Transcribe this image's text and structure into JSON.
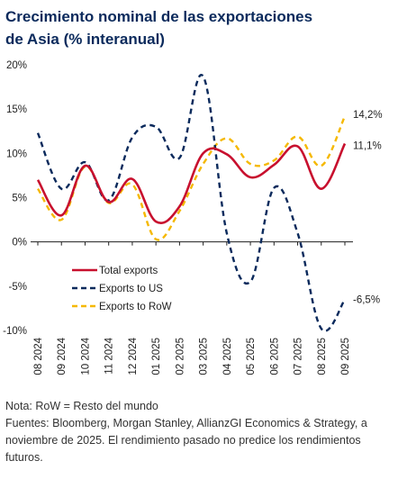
{
  "title_line1": "Crecimiento nominal de las exportaciones",
  "title_line2": "de Asia (% interanual)",
  "footer": {
    "note": "Nota: RoW = Resto del mundo",
    "sources": "Fuentes: Bloomberg, Morgan Stanley, AllianzGI Economics & Strategy, a noviembre de 2025. El rendimiento pasado no predice los rendimientos futuros."
  },
  "colors": {
    "title": "#0b2a5c",
    "total": "#c8102e",
    "us": "#0b2a5c",
    "row": "#f5b800"
  },
  "chart_data": {
    "type": "line",
    "categories": [
      "08 2024",
      "09 2024",
      "10 2024",
      "11 2024",
      "12 2024",
      "01 2025",
      "02 2025",
      "03 2025",
      "04 2025",
      "05 2025",
      "06 2025",
      "07 2025",
      "08 2025",
      "09 2025"
    ],
    "ylim": [
      -10,
      20
    ],
    "yticks": [
      20,
      15,
      10,
      5,
      0,
      -5,
      -10
    ],
    "ytick_labels": [
      "20%",
      "15%",
      "10%",
      "5%",
      "0%",
      "-5%",
      "-10%"
    ],
    "grid": false,
    "legend_position": "bottom-left",
    "series": [
      {
        "name": "Total exports",
        "key": "total",
        "style": "solid",
        "values": [
          7.0,
          3.0,
          8.6,
          4.5,
          7.1,
          2.3,
          4.0,
          10.0,
          9.9,
          7.3,
          8.7,
          10.8,
          6.0,
          11.1
        ],
        "end_label": "11,1%"
      },
      {
        "name": "Exports to US",
        "key": "us",
        "style": "dash",
        "values": [
          12.3,
          6.0,
          9.0,
          4.7,
          11.8,
          13.0,
          9.5,
          18.7,
          1.0,
          -4.5,
          6.1,
          1.0,
          -9.8,
          -6.5
        ],
        "end_label": "-6,5%"
      },
      {
        "name": "Exports to RoW",
        "key": "row",
        "style": "dash",
        "values": [
          6.0,
          2.5,
          8.5,
          4.4,
          6.5,
          0.3,
          3.5,
          8.8,
          11.7,
          8.8,
          9.2,
          11.9,
          8.6,
          14.2
        ],
        "end_label": "14,2%"
      }
    ]
  }
}
